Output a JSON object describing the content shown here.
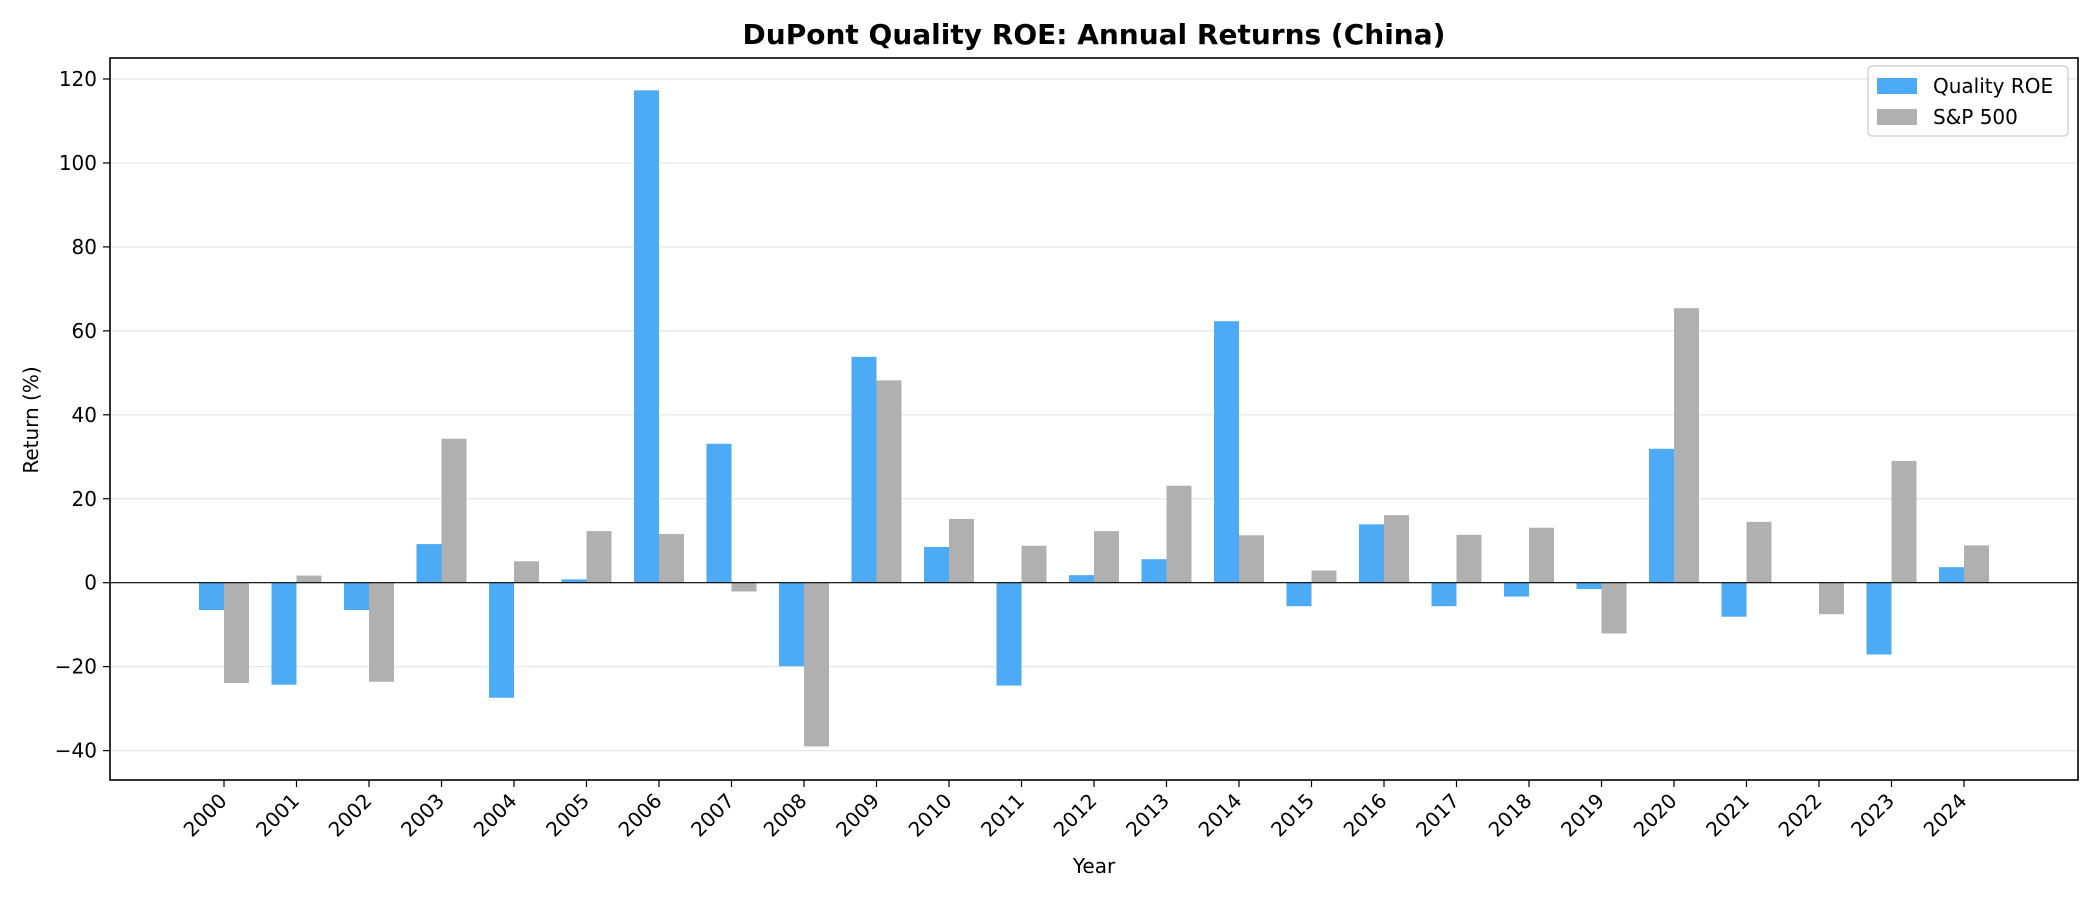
{
  "chart_data": {
    "type": "bar",
    "title": "DuPont Quality ROE: Annual Returns (China)",
    "xlabel": "Year",
    "ylabel": "Return (%)",
    "ylim": [
      -47,
      125
    ],
    "yticks": [
      -40,
      -20,
      0,
      20,
      40,
      60,
      80,
      100,
      120
    ],
    "grid": "horizontal",
    "legend_position": "top-right",
    "categories": [
      "2000",
      "2001",
      "2002",
      "2003",
      "2004",
      "2005",
      "2006",
      "2007",
      "2008",
      "2009",
      "2010",
      "2011",
      "2012",
      "2013",
      "2014",
      "2015",
      "2016",
      "2017",
      "2018",
      "2019",
      "2020",
      "2021",
      "2022",
      "2023",
      "2024"
    ],
    "series": [
      {
        "name": "Quality ROE",
        "color": "#4daaf5",
        "values": [
          -6.5,
          -24.3,
          -6.5,
          9.2,
          -27.4,
          0.8,
          117.3,
          33.1,
          -19.9,
          53.8,
          8.5,
          -24.5,
          1.8,
          5.6,
          62.3,
          -5.6,
          13.9,
          -5.6,
          -3.3,
          -1.5,
          31.9,
          -8.1,
          0.0,
          -17.1,
          3.7
        ]
      },
      {
        "name": "S&P 500",
        "color": "#b0b0b0",
        "values": [
          -23.9,
          1.7,
          -23.6,
          34.3,
          5.1,
          12.3,
          11.6,
          -2.1,
          -39.0,
          48.2,
          15.2,
          8.8,
          12.3,
          23.1,
          11.3,
          2.9,
          16.1,
          11.4,
          13.1,
          -12.1,
          65.4,
          14.5,
          -7.5,
          29.0,
          8.9
        ]
      }
    ]
  }
}
